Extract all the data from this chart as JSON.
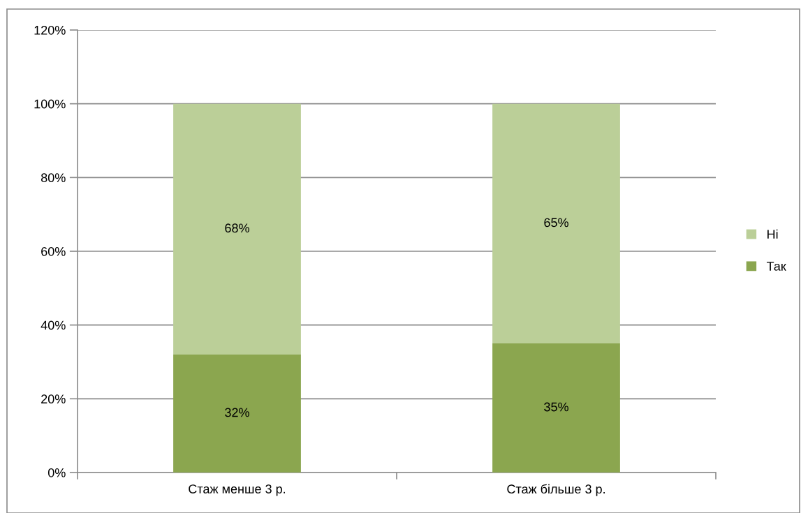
{
  "chart_data": {
    "type": "bar",
    "stacked": true,
    "categories": [
      "Стаж менше 3 р.",
      "Стаж більше 3 р."
    ],
    "series": [
      {
        "name": "Так",
        "color": "#8ba64f",
        "values": [
          32,
          35
        ],
        "value_labels": [
          "32%",
          "35%"
        ]
      },
      {
        "name": "Ні",
        "color": "#bbcf98",
        "values": [
          68,
          65
        ],
        "value_labels": [
          "68%",
          "65%"
        ]
      }
    ],
    "ylim": [
      0,
      120
    ],
    "yticks": [
      {
        "value": 0,
        "label": "0%"
      },
      {
        "value": 20,
        "label": "20%"
      },
      {
        "value": 40,
        "label": "40%"
      },
      {
        "value": 60,
        "label": "60%"
      },
      {
        "value": 80,
        "label": "80%"
      },
      {
        "value": 100,
        "label": "100%"
      },
      {
        "value": 120,
        "label": "120%"
      }
    ],
    "grid": "y",
    "legend": "right"
  }
}
